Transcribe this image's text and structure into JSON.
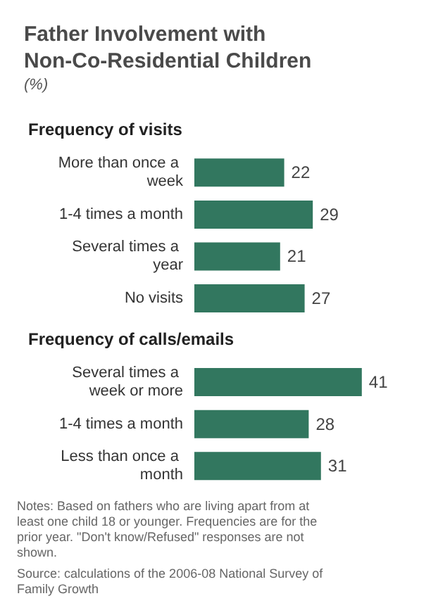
{
  "chart_data": {
    "type": "bar",
    "orientation": "horizontal",
    "title": "Father Involvement with Non-Co-Residential Children",
    "subtitle": "(%)",
    "categories": [
      null,
      "More than once a week",
      "1-4 times a month",
      "Several times a year",
      "No visits",
      null,
      "Several times a week or more",
      "1-4 times a month",
      "Less than once a month"
    ],
    "values": [
      null,
      22,
      29,
      21,
      27,
      null,
      41,
      28,
      31
    ],
    "color": "#32775f",
    "data_labels": true,
    "grid": false,
    "tick_labels": "y",
    "annotations": [
      "Frequency of visits",
      "Frequency of calls/emails",
      "Notes: Based on fathers who are living apart from at least one child 18 or younger. Frequencies are for the prior year. \"Don't know/Refused\" responses are not shown.",
      "Source: calculations of the 2006-08 National Survey of Family Growth"
    ]
  }
}
